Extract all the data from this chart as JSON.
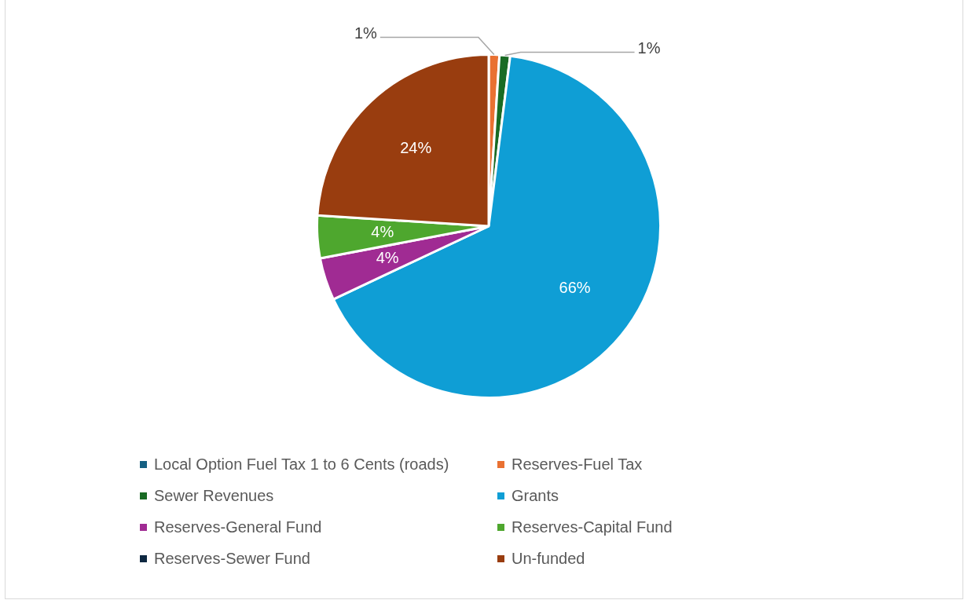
{
  "chart_data": {
    "type": "pie",
    "categories": [
      "Local Option Fuel Tax 1 to 6 Cents (roads)",
      "Reserves-Fuel Tax",
      "Sewer Revenues",
      "Grants",
      "Reserves-General Fund",
      "Reserves-Capital Fund",
      "Reserves-Sewer Fund",
      "Un-funded"
    ],
    "values": [
      0,
      1,
      1,
      66,
      4,
      4,
      0,
      24
    ],
    "colors": [
      "#156082",
      "#e97132",
      "#196b24",
      "#0f9ed5",
      "#a02b93",
      "#4ea72e",
      "#0e2841",
      "#993d0f"
    ],
    "value_labels": [
      null,
      "1%",
      "1%",
      "66%",
      "4%",
      "4%",
      null,
      "24%"
    ],
    "legend": "bottom"
  }
}
